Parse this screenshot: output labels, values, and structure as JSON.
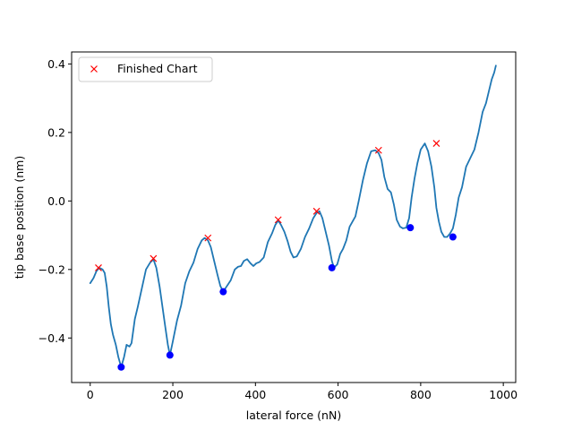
{
  "chart_data": {
    "type": "line",
    "title": "",
    "xlabel": "lateral force (nN)",
    "ylabel": "tip base position (nm)",
    "xlim": [
      -45,
      1030
    ],
    "ylim": [
      -0.53,
      0.435
    ],
    "xticks": [
      0,
      200,
      400,
      600,
      800,
      1000
    ],
    "xtick_labels": [
      "0",
      "200",
      "400",
      "600",
      "800",
      "1000"
    ],
    "yticks": [
      -0.4,
      -0.2,
      0.0,
      0.2,
      0.4
    ],
    "ytick_labels": [
      "−0.4",
      "−0.2",
      "0.0",
      "0.2",
      "0.4"
    ],
    "grid": false,
    "legend_position": "top-left",
    "legend": [
      {
        "label": "Finished Chart",
        "marker": "x",
        "color": "#ff0000"
      }
    ],
    "series": [
      {
        "kind": "line",
        "color": "#1f77b4",
        "x": [
          0,
          8,
          15,
          22,
          30,
          35,
          40,
          45,
          50,
          55,
          62,
          68,
          75,
          82,
          88,
          95,
          100,
          108,
          115,
          125,
          135,
          145,
          153,
          160,
          168,
          175,
          182,
          188,
          193,
          200,
          210,
          220,
          230,
          240,
          250,
          260,
          270,
          277,
          285,
          292,
          300,
          308,
          315,
          322,
          330,
          340,
          350,
          358,
          365,
          372,
          380,
          388,
          395,
          402,
          410,
          420,
          430,
          440,
          448,
          455,
          462,
          470,
          478,
          485,
          492,
          500,
          510,
          520,
          530,
          540,
          548,
          555,
          562,
          570,
          578,
          585,
          590,
          598,
          605,
          612,
          620,
          628,
          635,
          642,
          650,
          660,
          670,
          680,
          690,
          698,
          705,
          712,
          720,
          728,
          735,
          742,
          750,
          757,
          765,
          772,
          778,
          785,
          792,
          800,
          810,
          818,
          826,
          833,
          838,
          844,
          850,
          857,
          864,
          871,
          878,
          885,
          892,
          900,
          910,
          920,
          930,
          940,
          950,
          958,
          965,
          972,
          978,
          982
        ],
        "y": [
          -0.24,
          -0.225,
          -0.205,
          -0.195,
          -0.2,
          -0.21,
          -0.25,
          -0.31,
          -0.36,
          -0.39,
          -0.42,
          -0.455,
          -0.485,
          -0.455,
          -0.42,
          -0.425,
          -0.415,
          -0.345,
          -0.31,
          -0.255,
          -0.2,
          -0.18,
          -0.17,
          -0.195,
          -0.25,
          -0.31,
          -0.37,
          -0.42,
          -0.45,
          -0.41,
          -0.35,
          -0.305,
          -0.24,
          -0.205,
          -0.18,
          -0.14,
          -0.115,
          -0.108,
          -0.115,
          -0.135,
          -0.175,
          -0.215,
          -0.248,
          -0.265,
          -0.25,
          -0.232,
          -0.2,
          -0.192,
          -0.19,
          -0.175,
          -0.17,
          -0.182,
          -0.19,
          -0.182,
          -0.178,
          -0.165,
          -0.12,
          -0.095,
          -0.07,
          -0.057,
          -0.07,
          -0.09,
          -0.118,
          -0.148,
          -0.165,
          -0.162,
          -0.14,
          -0.105,
          -0.08,
          -0.05,
          -0.035,
          -0.03,
          -0.05,
          -0.09,
          -0.13,
          -0.175,
          -0.195,
          -0.185,
          -0.155,
          -0.14,
          -0.115,
          -0.075,
          -0.06,
          -0.045,
          0.0,
          0.06,
          0.11,
          0.145,
          0.148,
          0.14,
          0.12,
          0.07,
          0.035,
          0.025,
          -0.01,
          -0.055,
          -0.075,
          -0.08,
          -0.078,
          -0.05,
          0.01,
          0.065,
          0.11,
          0.15,
          0.168,
          0.145,
          0.1,
          0.04,
          -0.02,
          -0.06,
          -0.09,
          -0.105,
          -0.105,
          -0.095,
          -0.08,
          -0.04,
          0.01,
          0.04,
          0.1,
          0.125,
          0.15,
          0.2,
          0.26,
          0.285,
          0.32,
          0.355,
          0.375,
          0.395
        ]
      },
      {
        "kind": "scatter",
        "marker": "x",
        "color": "#ff0000",
        "x": [
          20,
          153,
          285,
          455,
          548,
          698,
          838
        ],
        "y": [
          -0.195,
          -0.168,
          -0.108,
          -0.055,
          -0.03,
          0.148,
          0.168
        ]
      },
      {
        "kind": "scatter",
        "marker": "o",
        "color": "#0000ff",
        "x": [
          75,
          193,
          322,
          585,
          775,
          878
        ],
        "y": [
          -0.485,
          -0.45,
          -0.265,
          -0.195,
          -0.078,
          -0.105
        ]
      }
    ]
  }
}
